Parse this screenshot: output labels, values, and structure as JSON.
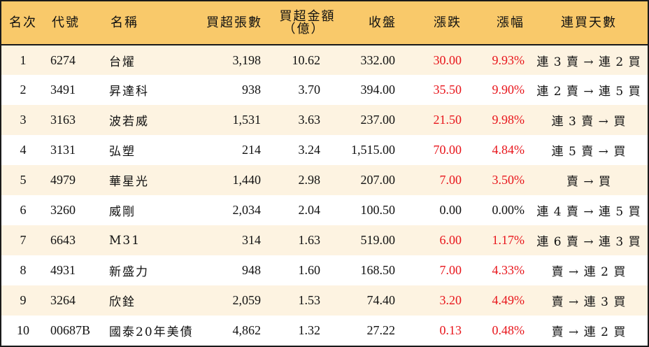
{
  "headers": {
    "rank": "名次",
    "code": "代號",
    "name": "名稱",
    "net_buy_lots": "買超張數",
    "net_buy_amount_line1": "買超金額",
    "net_buy_amount_line2": "（億）",
    "close": "收盤",
    "change": "漲跌",
    "change_pct": "漲幅",
    "streak": "連買天數"
  },
  "colors": {
    "header_bg": "#f9c96a",
    "stripe_bg": "#fdf3e1",
    "up_red": "#e8151b"
  },
  "rows": [
    {
      "rank": "1",
      "code": "6274",
      "name": "台燿",
      "lots": "3,198",
      "amount": "10.62",
      "close": "332.00",
      "change": "30.00",
      "pct": "9.93%",
      "streak": "連 3 賣 → 連 2 買",
      "up": true
    },
    {
      "rank": "2",
      "code": "3491",
      "name": "昇達科",
      "lots": "938",
      "amount": "3.70",
      "close": "394.00",
      "change": "35.50",
      "pct": "9.90%",
      "streak": "連 2 賣 → 連 5 買",
      "up": true
    },
    {
      "rank": "3",
      "code": "3163",
      "name": "波若威",
      "lots": "1,531",
      "amount": "3.63",
      "close": "237.00",
      "change": "21.50",
      "pct": "9.98%",
      "streak": "連 3 賣 → 買",
      "up": true
    },
    {
      "rank": "4",
      "code": "3131",
      "name": "弘塑",
      "lots": "214",
      "amount": "3.24",
      "close": "1,515.00",
      "change": "70.00",
      "pct": "4.84%",
      "streak": "連 5 賣 → 買",
      "up": true
    },
    {
      "rank": "5",
      "code": "4979",
      "name": "華星光",
      "lots": "1,440",
      "amount": "2.98",
      "close": "207.00",
      "change": "7.00",
      "pct": "3.50%",
      "streak": "賣 → 買",
      "up": true
    },
    {
      "rank": "6",
      "code": "3260",
      "name": "威剛",
      "lots": "2,034",
      "amount": "2.04",
      "close": "100.50",
      "change": "0.00",
      "pct": "0.00%",
      "streak": "連 4 賣 → 連 5 買",
      "up": false
    },
    {
      "rank": "7",
      "code": "6643",
      "name": "M31",
      "lots": "314",
      "amount": "1.63",
      "close": "519.00",
      "change": "6.00",
      "pct": "1.17%",
      "streak": "連 6 賣 → 連 3 買",
      "up": true
    },
    {
      "rank": "8",
      "code": "4931",
      "name": "新盛力",
      "lots": "948",
      "amount": "1.60",
      "close": "168.50",
      "change": "7.00",
      "pct": "4.33%",
      "streak": "賣 → 連 2 買",
      "up": true
    },
    {
      "rank": "9",
      "code": "3264",
      "name": "欣銓",
      "lots": "2,059",
      "amount": "1.53",
      "close": "74.40",
      "change": "3.20",
      "pct": "4.49%",
      "streak": "賣 → 連 3 買",
      "up": true
    },
    {
      "rank": "10",
      "code": "00687B",
      "name": "國泰20年美債",
      "lots": "4,862",
      "amount": "1.32",
      "close": "27.22",
      "change": "0.13",
      "pct": "0.48%",
      "streak": "賣 → 連 2 買",
      "up": true
    }
  ]
}
